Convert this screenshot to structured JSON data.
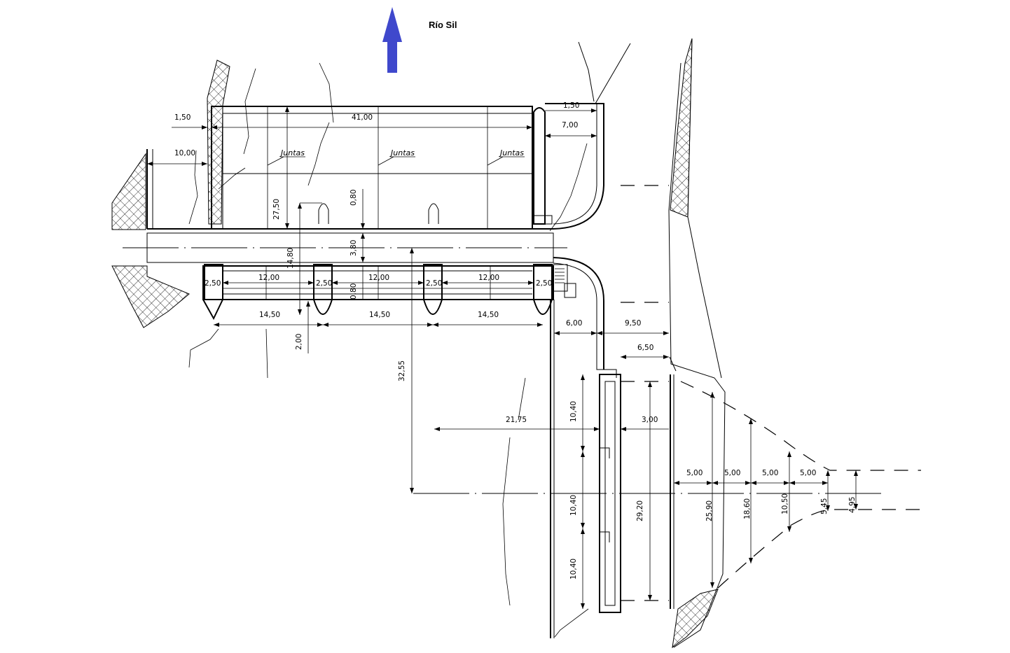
{
  "title": "Río Sil",
  "colors": {
    "arrow": "#3f48cc",
    "line": "#000000"
  },
  "labels": {
    "joint": "Juntas"
  },
  "dims": {
    "d41_00": "41,00",
    "d1_50_left": "1,50",
    "d1_50_right": "1,50",
    "d7_00": "7,00",
    "d10_00": "10,00",
    "d27_50": "27,50",
    "d0_80_a": "0,80",
    "d3_80": "3,80",
    "d14_80": "14,80",
    "d0_80_b": "0,80",
    "d2_50_a": "2,50",
    "d2_50_b": "2,50",
    "d2_50_c": "2,50",
    "d2_50_d": "2,50",
    "d12_00_a": "12,00",
    "d12_00_b": "12,00",
    "d12_00_c": "12,00",
    "d14_50_a": "14,50",
    "d14_50_b": "14,50",
    "d14_50_c": "14,50",
    "d2_00": "2,00",
    "d32_55": "32,55",
    "d6_00": "6,00",
    "d9_50": "9,50",
    "d6_50": "6,50",
    "d21_75": "21,75",
    "d3_00": "3,00",
    "d10_40_a": "10,40",
    "d10_40_b": "10,40",
    "d10_40_c": "10,40",
    "d29_20": "29,20",
    "d5_00_a": "5,00",
    "d5_00_b": "5,00",
    "d5_00_c": "5,00",
    "d5_00_d": "5,00",
    "d25_90": "25,90",
    "d18_60": "18,60",
    "d10_50": "10,50",
    "d5_45": "5,45",
    "d4_95": "4,95"
  }
}
